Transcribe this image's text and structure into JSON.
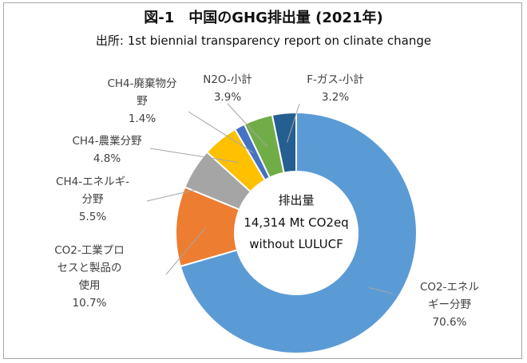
{
  "chart_data": {
    "type": "pie",
    "style": "donut",
    "title": "図-1　中国のGHG排出量 (2021年)",
    "subtitle": "出所: 1st biennial transparency report on clinate change",
    "center_label": [
      "排出量",
      "14,314 Mt CO2eq",
      "without LULUCF"
    ],
    "slices": [
      {
        "name": "CO2-エネルギー分野",
        "value": 70.6,
        "label": "70.6%",
        "color": "#5b9bd5",
        "label_lines": [
          "CO2-エネル",
          "ギー分野"
        ]
      },
      {
        "name": "CO2-工業プロセスと製品の使用",
        "value": 10.7,
        "label": "10.7%",
        "color": "#ed7d31",
        "label_lines": [
          "CO2-工業プロ",
          "セスと製品の",
          "使用"
        ]
      },
      {
        "name": "CH4-エネルギー分野",
        "value": 5.5,
        "label": "5.5%",
        "color": "#a5a5a5",
        "label_lines": [
          "CH4-エネルギ-",
          "分野"
        ]
      },
      {
        "name": "CH4-農業分野",
        "value": 4.8,
        "label": "4.8%",
        "color": "#ffc000",
        "label_lines": [
          "CH4-農業分野"
        ]
      },
      {
        "name": "CH4-廃棄物分野",
        "value": 1.4,
        "label": "1.4%",
        "color": "#4472c4",
        "label_lines": [
          "CH4-廃棄物分",
          "野"
        ]
      },
      {
        "name": "N2O-小計",
        "value": 3.9,
        "label": "3.9%",
        "color": "#70ad47",
        "label_lines": [
          "N2O-小計"
        ]
      },
      {
        "name": "F-ガス-小計",
        "value": 3.2,
        "label": "3.2%",
        "color": "#255e91",
        "label_lines": [
          "F-ガス-小計"
        ]
      }
    ]
  }
}
